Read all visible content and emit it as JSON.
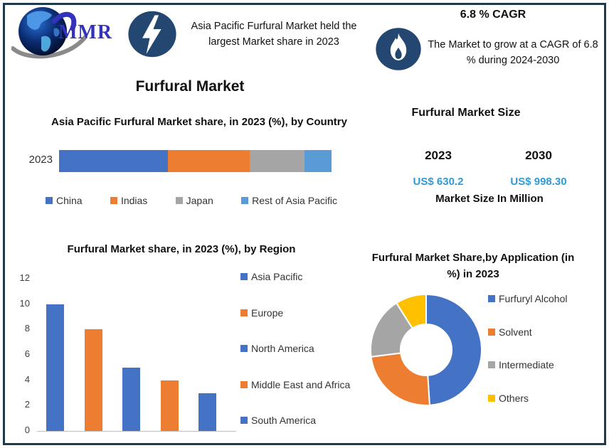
{
  "logo": {
    "text": "MMR"
  },
  "top_banner": {
    "highlight_left": "Asia Pacific Furfural Market held the largest Market share in 2023",
    "cagr_heading": "6.8 % CAGR",
    "highlight_right": "The Market to grow at a CAGR of 6.8 % during 2024-2030",
    "icon_bg": "#234770"
  },
  "main_title": "Furfural Market",
  "market_size_panel": {
    "title": "Furfural Market Size",
    "columns": [
      {
        "year": "2023",
        "value": "US$ 630.2"
      },
      {
        "year": "2030",
        "value": "US$ 998.30"
      }
    ],
    "caption": "Market Size In Million",
    "value_color": "#2e9bd6"
  },
  "chart_data": [
    {
      "type": "bar",
      "variant": "horizontal_stacked",
      "title": "Asia Pacific Furfural Market share, in 2023 (%), by Country",
      "categories": [
        "2023"
      ],
      "series": [
        {
          "name": "China",
          "values": [
            40
          ],
          "color": "#4472c4"
        },
        {
          "name": "Indias",
          "values": [
            30
          ],
          "color": "#ed7d31"
        },
        {
          "name": "Japan",
          "values": [
            20
          ],
          "color": "#a5a5a5"
        },
        {
          "name": "Rest of Asia Pacific",
          "values": [
            10
          ],
          "color": "#5b9bd5"
        }
      ],
      "xlim": [
        0,
        100
      ],
      "legend_position": "bottom",
      "grid": false
    },
    {
      "type": "bar",
      "title": "Furfural Market share, in 2023 (%), by Region",
      "categories": [
        "Asia Pacific",
        "Europe",
        "North America",
        "Middle East and Africa",
        "South America"
      ],
      "values": [
        10,
        8,
        5,
        4,
        3
      ],
      "colors": [
        "#4472c4",
        "#ed7d31",
        "#4472c4",
        "#ed7d31",
        "#4472c4"
      ],
      "ylabel": "",
      "xlabel": "",
      "ylim": [
        0,
        12
      ],
      "yticks": [
        0,
        2,
        4,
        6,
        8,
        10,
        12
      ],
      "legend_position": "right",
      "grid": false
    },
    {
      "type": "pie",
      "variant": "donut",
      "title": "Furfural Market Share,by Application (in %) in 2023",
      "labels": [
        "Furfuryl Alcohol",
        "Solvent",
        "Intermediate",
        "Others"
      ],
      "values": [
        49,
        24,
        18,
        9
      ],
      "colors": [
        "#4472c4",
        "#ed7d31",
        "#a5a5a5",
        "#ffc000"
      ],
      "legend_position": "right"
    }
  ]
}
